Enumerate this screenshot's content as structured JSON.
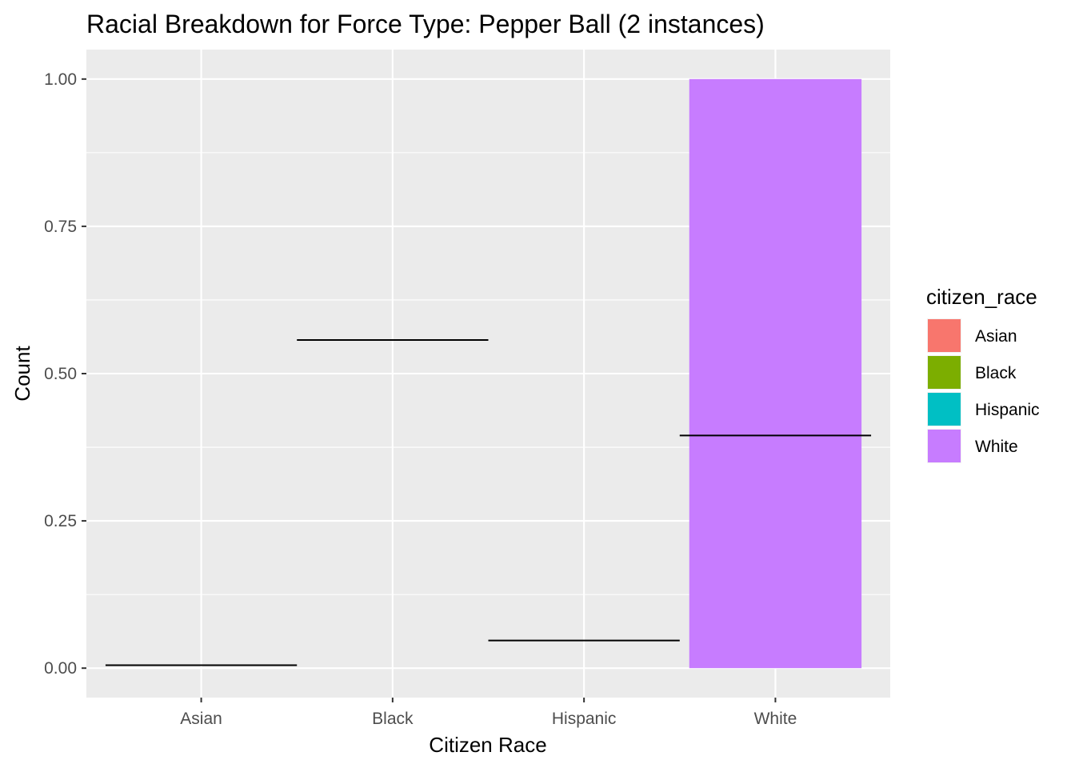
{
  "chart_data": {
    "type": "bar",
    "title": "Racial Breakdown for Force Type: Pepper Ball (2 instances)",
    "xlabel": "Citizen Race",
    "ylabel": "Count",
    "categories": [
      "Asian",
      "Black",
      "Hispanic",
      "White"
    ],
    "values": [
      0,
      0,
      0,
      1
    ],
    "bar_colors": [
      "#F8766D",
      "#7CAE00",
      "#00BFC4",
      "#C77CFF"
    ],
    "reference_lines": [
      {
        "category": "Asian",
        "y": 0.005
      },
      {
        "category": "Black",
        "y": 0.557
      },
      {
        "category": "Hispanic",
        "y": 0.047
      },
      {
        "category": "White",
        "y": 0.395
      }
    ],
    "ylim": [
      -0.05,
      1.05
    ],
    "yticks": [
      "0.00",
      "0.25",
      "0.50",
      "0.75",
      "1.00"
    ],
    "ytick_values": [
      0,
      0.25,
      0.5,
      0.75,
      1.0
    ],
    "grid": true,
    "panel_background": "#EBEBEB",
    "legend": {
      "title": "citizen_race",
      "position": "right",
      "entries": [
        {
          "label": "Asian",
          "color": "#F8766D"
        },
        {
          "label": "Black",
          "color": "#7CAE00"
        },
        {
          "label": "Hispanic",
          "color": "#00BFC4"
        },
        {
          "label": "White",
          "color": "#C77CFF"
        }
      ]
    }
  }
}
